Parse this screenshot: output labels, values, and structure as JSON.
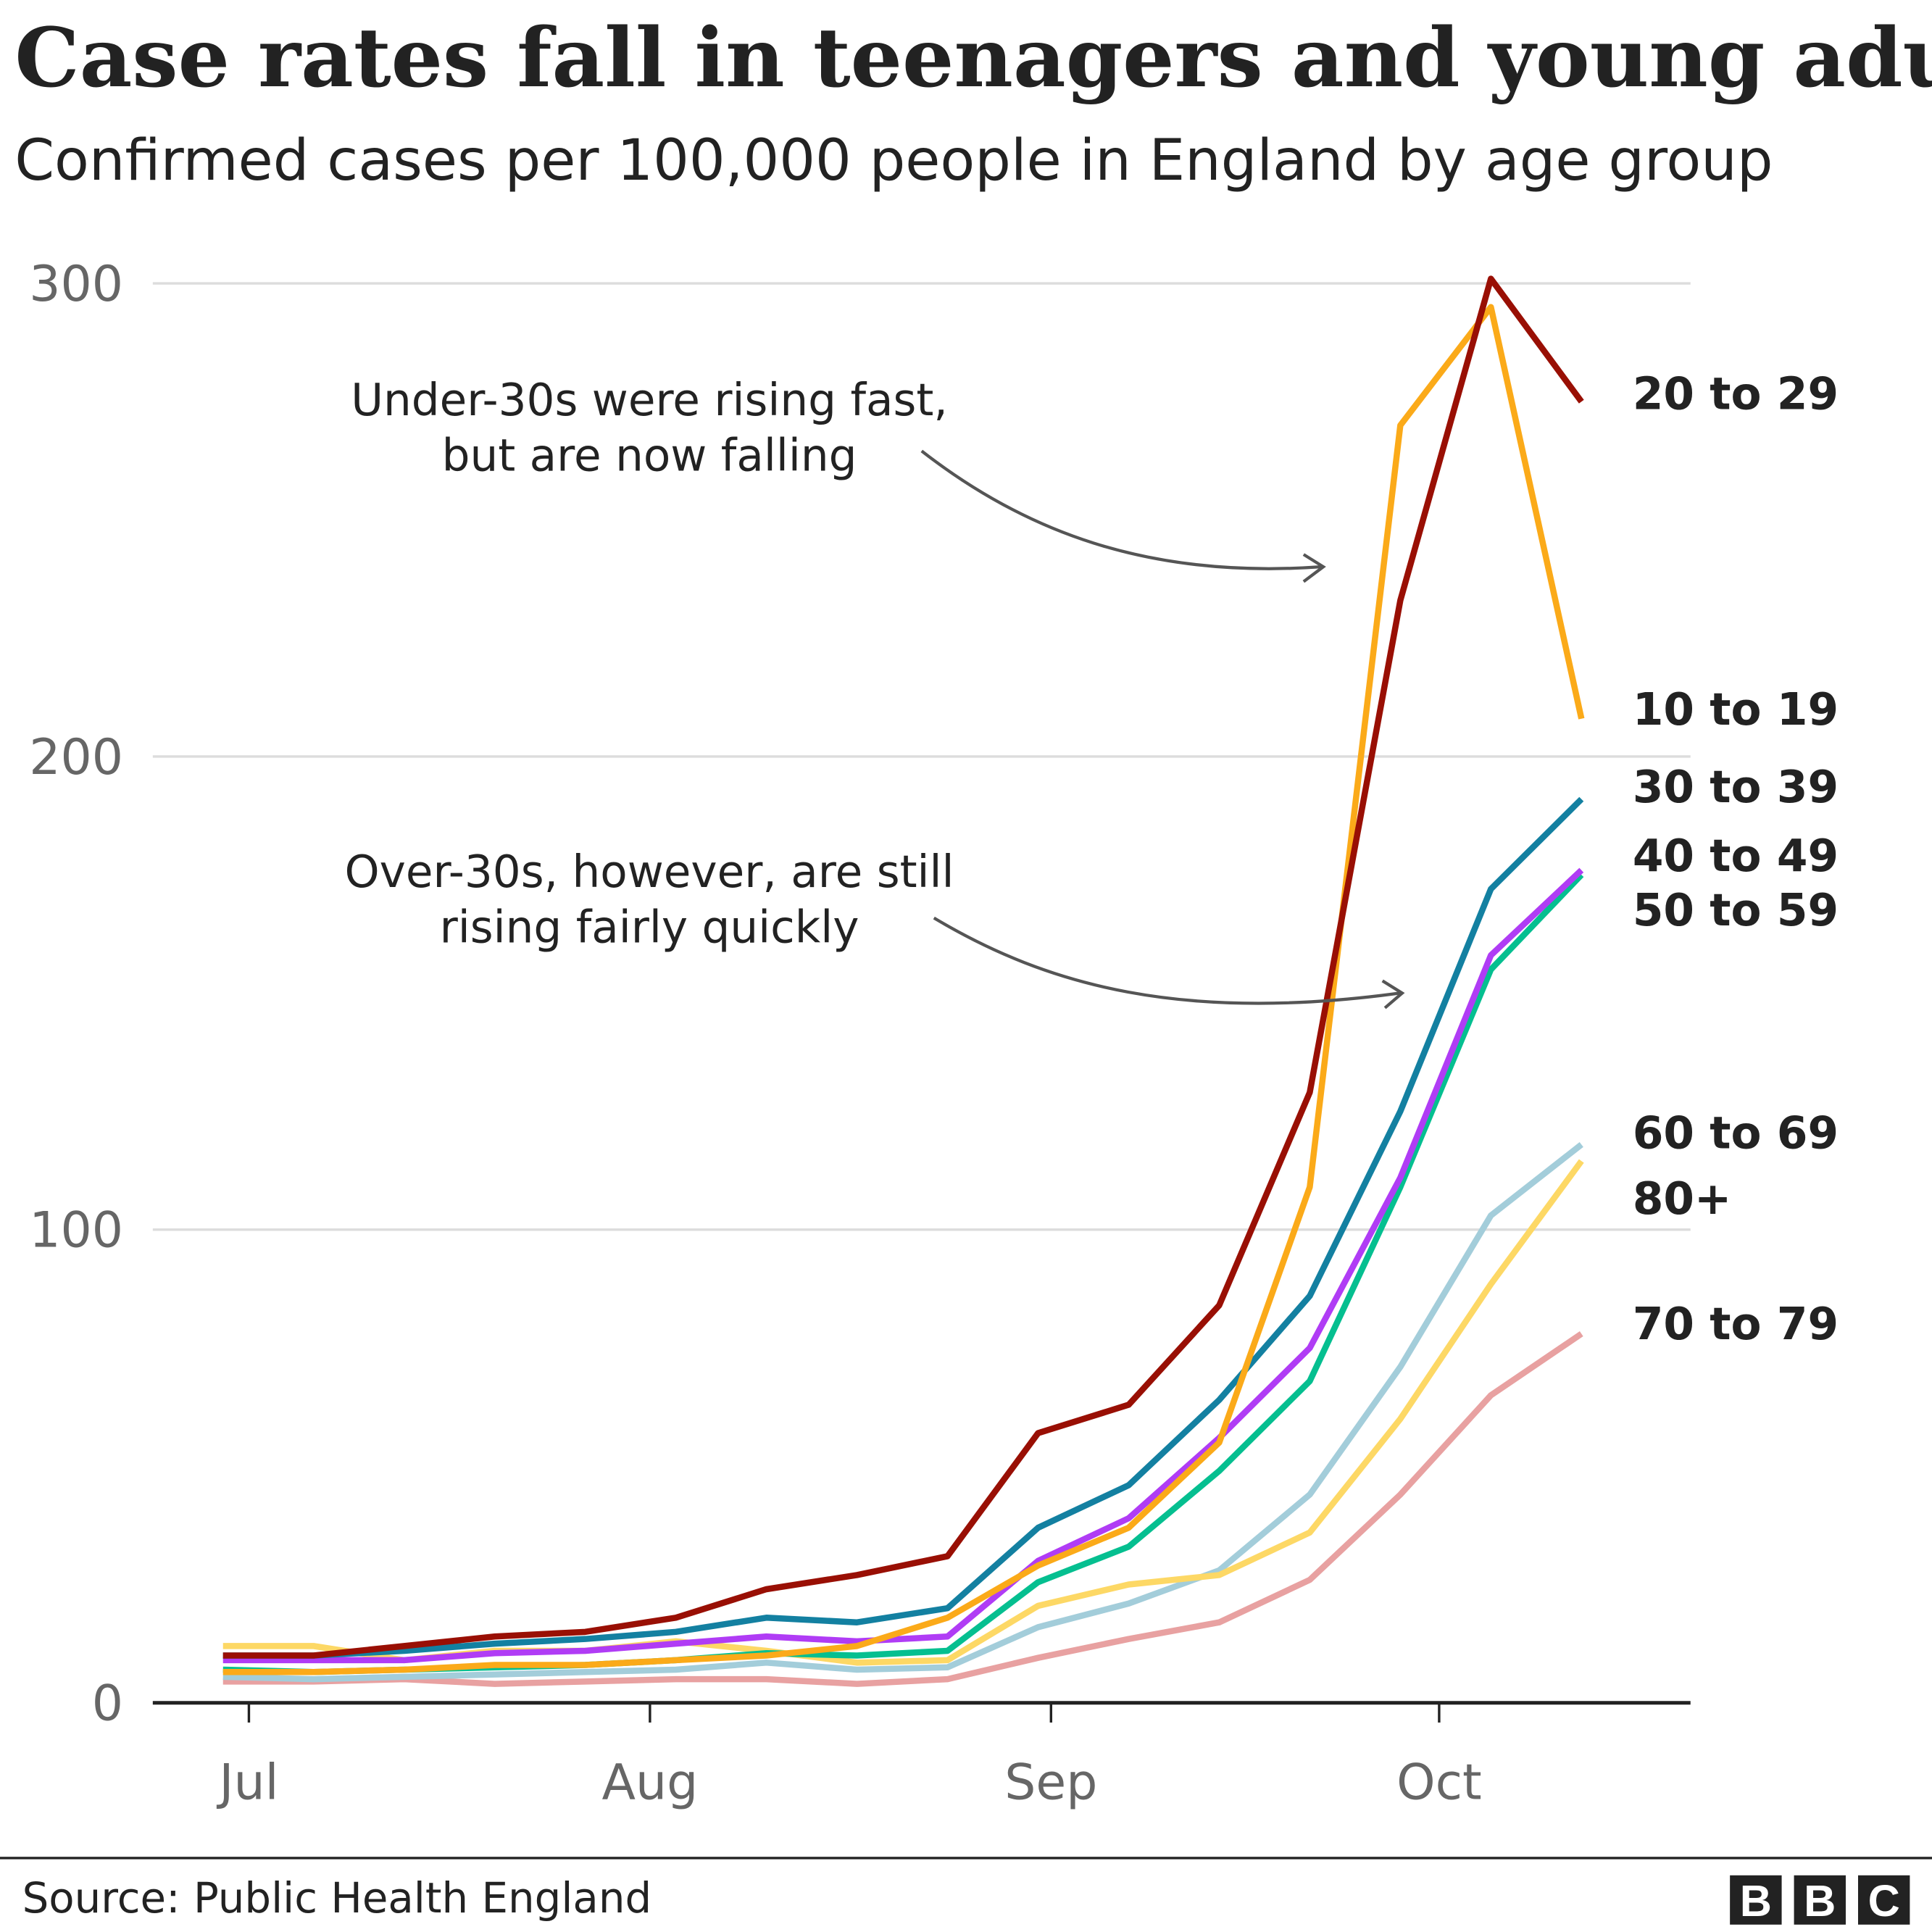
{
  "chart_data": {
    "type": "line",
    "title": "Case rates fall in teenagers and young adults",
    "subtitle": "Confirmed cases per 100,000 people in England by age group",
    "xlabel": "",
    "ylabel": "",
    "ylim": [
      0,
      300
    ],
    "yticks": [
      0,
      100,
      200,
      300
    ],
    "xticks": [
      {
        "date": "2020-07-01",
        "label": "Jul"
      },
      {
        "date": "2020-08-01",
        "label": "Aug"
      },
      {
        "date": "2020-09-01",
        "label": "Sep"
      },
      {
        "date": "2020-10-01",
        "label": "Oct"
      }
    ],
    "grid": true,
    "x": [
      "2020-06-29",
      "2020-07-06",
      "2020-07-13",
      "2020-07-20",
      "2020-07-27",
      "2020-08-03",
      "2020-08-10",
      "2020-08-17",
      "2020-08-24",
      "2020-08-31",
      "2020-09-07",
      "2020-09-14",
      "2020-09-21",
      "2020-09-28",
      "2020-10-05",
      "2020-10-12"
    ],
    "series": [
      {
        "name": "70 to 79",
        "color": "#e8a1a1",
        "values": [
          4.5,
          4.5,
          5,
          4,
          4.5,
          5,
          5,
          4,
          5,
          9.5,
          13.5,
          17,
          26,
          44,
          65,
          78
        ]
      },
      {
        "name": "60 to 69",
        "color": "#a3cdda",
        "values": [
          5.5,
          5,
          5.5,
          6,
          6.5,
          7,
          8.5,
          7,
          7.5,
          16,
          21,
          28,
          44,
          71,
          103,
          118
        ]
      },
      {
        "name": "80+",
        "color": "#fdd865",
        "values": [
          12,
          12,
          9,
          11,
          11,
          13,
          11,
          8.5,
          9,
          20.5,
          25,
          27,
          36,
          60,
          88.5,
          114.5
        ]
      },
      {
        "name": "50 to 59",
        "color": "#05bf90",
        "values": [
          7,
          6.5,
          7,
          7.5,
          8,
          9,
          10.5,
          10,
          11,
          25.5,
          33,
          49,
          68,
          109,
          155,
          175
        ]
      },
      {
        "name": "40 to 49",
        "color": "#b03cf5",
        "values": [
          9,
          9,
          9,
          10.5,
          11,
          12.5,
          14,
          13,
          14,
          30,
          39,
          56,
          75,
          111,
          158,
          176
        ]
      },
      {
        "name": "30 to 39",
        "color": "#1380a1",
        "values": [
          10,
          10,
          11,
          12.5,
          13.5,
          15,
          18,
          17,
          20,
          37,
          46,
          64,
          86,
          125,
          172,
          191
        ]
      },
      {
        "name": "10 to 19",
        "color": "#fbaa19",
        "values": [
          6.5,
          6.5,
          7,
          8,
          8,
          9,
          10,
          12,
          18,
          29,
          37,
          55,
          109,
          270,
          295,
          208
        ]
      },
      {
        "name": "20 to 29",
        "color": "#990f04",
        "values": [
          10,
          10,
          12,
          14,
          15,
          18,
          24,
          27,
          31,
          57,
          63,
          84,
          129,
          233,
          301,
          275
        ]
      }
    ],
    "annotations": [
      {
        "lines": [
          "Under-30s were rising fast,",
          "but are now falling"
        ]
      },
      {
        "lines": [
          "Over-30s, however, are still",
          "rising fairly quickly"
        ]
      }
    ],
    "source": "Source: Public Health England",
    "logo": "BBC"
  }
}
